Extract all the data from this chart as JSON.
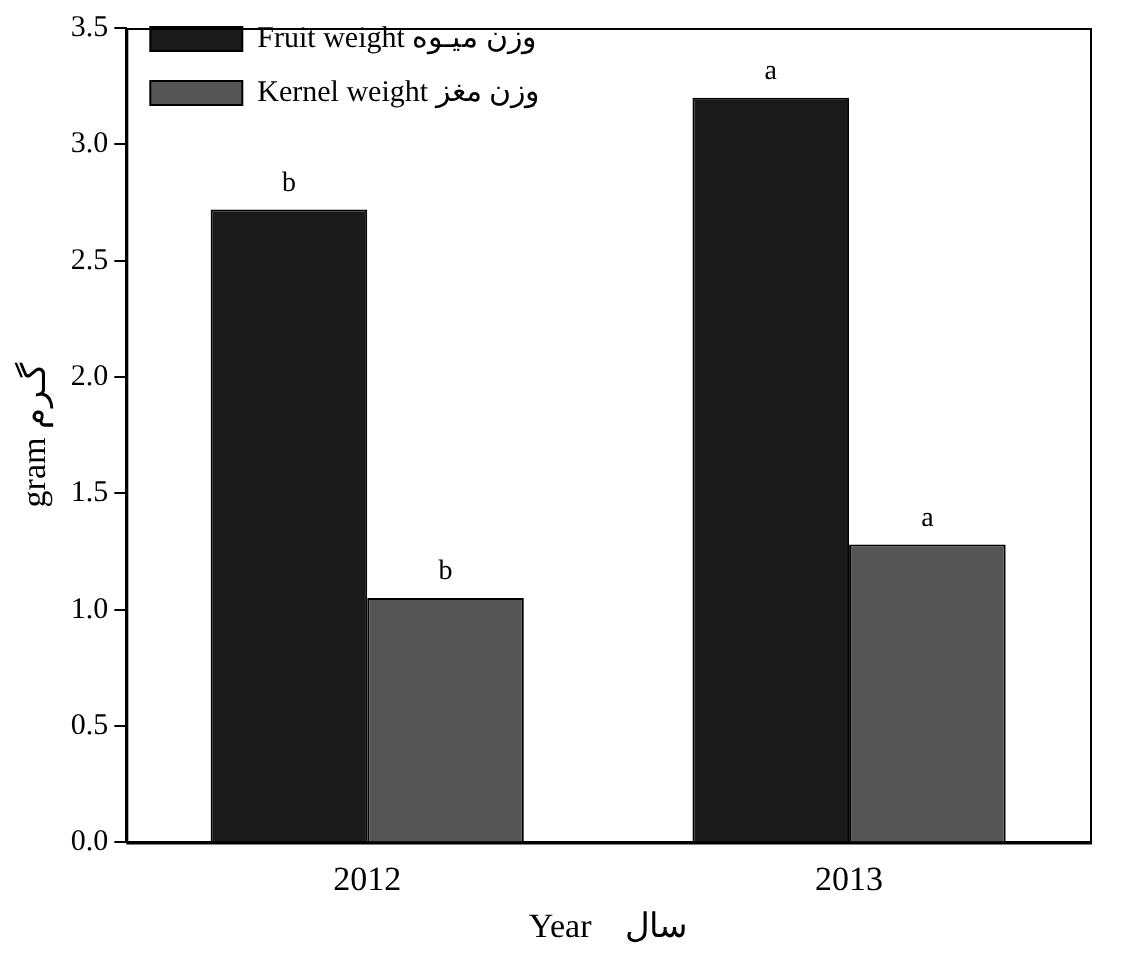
{
  "chart_data": {
    "type": "bar",
    "xlabel": "Year    سال",
    "ylabel": "gram گـرم",
    "categories": [
      "2012",
      "2013"
    ],
    "series": [
      {
        "name": "Fruit weight وزن میـوه",
        "color": "#1a1a1a",
        "values": [
          2.72,
          3.2
        ],
        "value_labels": [
          "b",
          "a"
        ]
      },
      {
        "name": "Kernel weight وزن مغز",
        "color": "#555555",
        "values": [
          1.05,
          1.28
        ],
        "value_labels": [
          "b",
          "a"
        ]
      }
    ],
    "ylim": [
      0,
      3.5
    ],
    "yticks": [
      {
        "value": 0,
        "label": "0.0"
      },
      {
        "value": 0.5,
        "label": "0.5"
      },
      {
        "value": 1,
        "label": "1.0"
      },
      {
        "value": 1.5,
        "label": "1.5"
      },
      {
        "value": 2,
        "label": "2.0"
      },
      {
        "value": 2.5,
        "label": "2.5"
      },
      {
        "value": 3,
        "label": "3.0"
      },
      {
        "value": 3.5,
        "label": "3.5"
      }
    ],
    "grid": false,
    "legend": "top left"
  }
}
